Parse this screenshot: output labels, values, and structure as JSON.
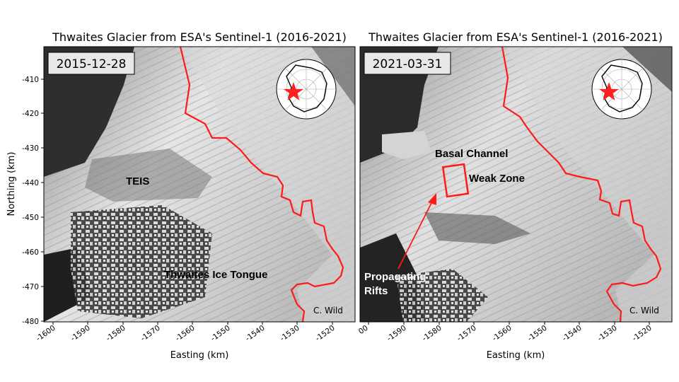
{
  "panels": [
    {
      "title": "Thwaites Glacier from ESA's Sentinel-1 (2016-2021)",
      "date": "2015-12-28",
      "credit": "C. Wild",
      "annotations": [
        "TEIS",
        "Thwaites Ice Tongue"
      ],
      "xlabel": "Easting (km)",
      "ylabel": "Northing (km)",
      "xticks": [
        "-1600",
        "-1590",
        "-1580",
        "-1570",
        "-1560",
        "-1550",
        "-1540",
        "-1530",
        "-1520"
      ],
      "yticks": [
        "-410",
        "-420",
        "-430",
        "-440",
        "-450",
        "-460",
        "-470",
        "-480"
      ]
    },
    {
      "title": "Thwaites Glacier from ESA's Sentinel-1 (2016-2021)",
      "date": "2021-03-31",
      "credit": "C. Wild",
      "annotations": [
        "Basal Channel",
        "Weak Zone",
        "Propagating",
        "Rifts"
      ],
      "xlabel": "Easting (km)",
      "xticks": [
        "00",
        "-1590",
        "-1580",
        "-1570",
        "-1560",
        "-1550",
        "-1540",
        "-1530",
        "-1520"
      ]
    }
  ],
  "colors": {
    "grounding_line": "#ff1a1a",
    "star": "#ff2020"
  }
}
